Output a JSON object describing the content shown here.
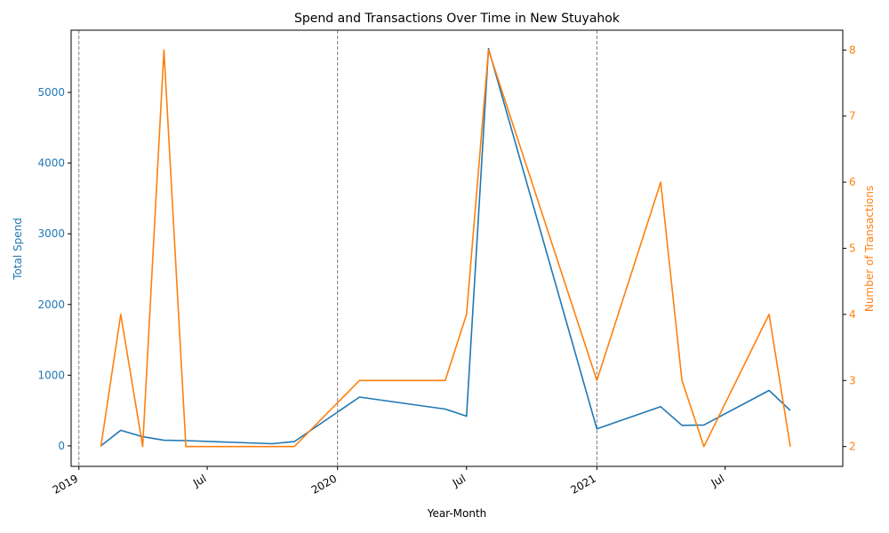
{
  "chart_data": {
    "type": "line",
    "title": "Spend and Transactions Over Time in New Stuyahok",
    "xlabel": "Year-Month",
    "ylabel_left": "Total Spend",
    "ylabel_right": "Number of Transactions",
    "x_ticks": [
      {
        "date": "2019-01-01",
        "label": "2019"
      },
      {
        "date": "2019-07-01",
        "label": "Jul"
      },
      {
        "date": "2020-01-01",
        "label": "2020"
      },
      {
        "date": "2020-07-01",
        "label": "Jul"
      },
      {
        "date": "2021-01-01",
        "label": "2021"
      },
      {
        "date": "2021-07-01",
        "label": "Jul"
      }
    ],
    "year_markers": [
      "2019-01-01",
      "2020-01-01",
      "2021-01-01"
    ],
    "y_left_ticks": [
      0,
      1000,
      2000,
      3000,
      4000,
      5000
    ],
    "y_right_ticks": [
      2,
      3,
      4,
      5,
      6,
      7,
      8
    ],
    "x_range": [
      "2018-12-21",
      "2021-12-14"
    ],
    "y_left_range": [
      -290,
      5880
    ],
    "y_right_range": [
      1.7,
      8.3
    ],
    "series": [
      {
        "name": "Total Spend",
        "axis": "left",
        "color": "#1f77b4",
        "points": [
          [
            "2019-02-01",
            0
          ],
          [
            "2019-03-01",
            220
          ],
          [
            "2019-04-01",
            130
          ],
          [
            "2019-05-01",
            80
          ],
          [
            "2019-06-01",
            75
          ],
          [
            "2019-10-01",
            30
          ],
          [
            "2019-11-01",
            60
          ],
          [
            "2020-02-01",
            690
          ],
          [
            "2020-06-01",
            520
          ],
          [
            "2020-07-01",
            420
          ],
          [
            "2020-08-01",
            5620
          ],
          [
            "2021-01-01",
            240
          ],
          [
            "2021-04-01",
            555
          ],
          [
            "2021-05-01",
            290
          ],
          [
            "2021-06-01",
            295
          ],
          [
            "2021-09-01",
            785
          ],
          [
            "2021-10-01",
            500
          ]
        ]
      },
      {
        "name": "Number of Transactions",
        "axis": "right",
        "color": "#ff7f0e",
        "points": [
          [
            "2019-02-01",
            2
          ],
          [
            "2019-03-01",
            4
          ],
          [
            "2019-04-01",
            2
          ],
          [
            "2019-05-01",
            8
          ],
          [
            "2019-06-01",
            2
          ],
          [
            "2019-10-01",
            2
          ],
          [
            "2019-11-01",
            2
          ],
          [
            "2020-02-01",
            3
          ],
          [
            "2020-06-01",
            3
          ],
          [
            "2020-07-01",
            4
          ],
          [
            "2020-08-01",
            8
          ],
          [
            "2021-01-01",
            3
          ],
          [
            "2021-04-01",
            6
          ],
          [
            "2021-05-01",
            3
          ],
          [
            "2021-06-01",
            2
          ],
          [
            "2021-09-01",
            4
          ],
          [
            "2021-10-01",
            2
          ]
        ]
      }
    ]
  }
}
